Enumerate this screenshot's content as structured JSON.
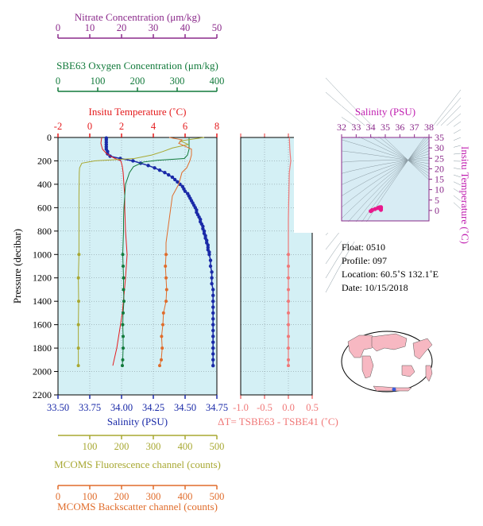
{
  "chart_data": {
    "type": "line",
    "main_panel": {
      "pressure_axis": {
        "label": "Pressure (decibar)",
        "ylim": [
          0,
          2200
        ],
        "reversed": true,
        "ticks": [
          "0",
          "200",
          "400",
          "600",
          "800",
          "1000",
          "1200",
          "1400",
          "1600",
          "1800",
          "2000",
          "2200"
        ]
      },
      "axes": {
        "nitrate": {
          "label": "Nitrate Concentration (μm/kg)",
          "xlim": [
            0,
            50
          ],
          "ticks": [
            "0",
            "10",
            "20",
            "30",
            "40",
            "50"
          ],
          "color": "#8b2a8b"
        },
        "oxygen": {
          "label": "SBE63 Oxygen Concentration (μm/kg)",
          "xlim": [
            0,
            400
          ],
          "ticks": [
            "0",
            "100",
            "200",
            "300",
            "400"
          ],
          "color": "#127a3b"
        },
        "temperature": {
          "label": "Insitu Temperature (˚C)",
          "xlim": [
            -2,
            8
          ],
          "ticks": [
            "-2",
            "0",
            "2",
            "4",
            "6",
            "8"
          ],
          "color": "#e41a1c"
        },
        "salinity": {
          "label": "Salinity (PSU)",
          "xlim": [
            33.5,
            34.75
          ],
          "ticks": [
            "33.50",
            "33.75",
            "34.00",
            "34.25",
            "34.50",
            "34.75"
          ],
          "color": "#1a2aa8"
        },
        "fluorescence": {
          "label": "MCOMS Fluorescence channel (counts)",
          "xlim": [
            0,
            500
          ],
          "ticks": [
            "100",
            "200",
            "300",
            "400",
            "500"
          ],
          "color": "#a8a832"
        },
        "backscatter": {
          "label": "MCOMS Backscatter channel (counts)",
          "xlim": [
            0,
            500
          ],
          "ticks": [
            "0",
            "100",
            "200",
            "300",
            "400",
            "500"
          ],
          "color": "#e06c2b"
        }
      },
      "series": [
        {
          "axis": "salinity",
          "pressure": [
            5,
            20,
            40,
            60,
            80,
            100,
            120,
            140,
            160,
            180,
            200,
            220,
            240,
            260,
            280,
            300,
            320,
            340,
            360,
            380,
            400,
            420,
            440,
            460,
            480,
            500,
            520,
            540,
            560,
            580,
            600,
            620,
            640,
            660,
            680,
            700,
            720,
            740,
            760,
            780,
            800,
            820,
            840,
            860,
            880,
            900,
            920,
            940,
            960,
            980,
            1000,
            1050,
            1100,
            1150,
            1200,
            1250,
            1300,
            1350,
            1400,
            1450,
            1500,
            1550,
            1600,
            1650,
            1700,
            1750,
            1800,
            1850,
            1900,
            1950
          ],
          "values": [
            33.88,
            33.88,
            33.88,
            33.88,
            33.88,
            33.88,
            33.89,
            33.89,
            33.91,
            33.99,
            34.09,
            34.15,
            34.21,
            34.26,
            34.3,
            34.34,
            34.37,
            34.4,
            34.42,
            34.44,
            34.46,
            34.48,
            34.49,
            34.5,
            34.52,
            34.53,
            34.54,
            34.55,
            34.56,
            34.57,
            34.58,
            34.59,
            34.59,
            34.6,
            34.61,
            34.62,
            34.62,
            34.63,
            34.64,
            34.64,
            34.65,
            34.65,
            34.66,
            34.66,
            34.67,
            34.67,
            34.68,
            34.68,
            34.68,
            34.69,
            34.69,
            34.7,
            34.7,
            34.71,
            34.71,
            34.71,
            34.72,
            34.72,
            34.72,
            34.72,
            34.72,
            34.72,
            34.72,
            34.72,
            34.72,
            34.72,
            34.72,
            34.72,
            34.72,
            34.72
          ]
        },
        {
          "axis": "temperature",
          "pressure": [
            0,
            50,
            100,
            130,
            160,
            180,
            200,
            220,
            250,
            300,
            400,
            500,
            600,
            800,
            1000,
            1200,
            1500,
            1800,
            1950
          ],
          "values": [
            0.75,
            0.7,
            0.8,
            1.0,
            1.3,
            1.6,
            1.95,
            2.0,
            2.05,
            2.1,
            2.15,
            2.2,
            2.2,
            2.25,
            2.35,
            2.25,
            2.05,
            1.7,
            1.45
          ]
        },
        {
          "axis": "oxygen",
          "pressure": [
            0,
            100,
            150,
            180,
            195,
            210,
            250,
            300,
            400,
            500,
            600,
            700,
            800,
            900,
            1000,
            1100,
            1200,
            1300,
            1400,
            1500,
            1600,
            1700,
            1800,
            1900,
            1950
          ],
          "values": [
            330,
            330,
            326,
            318,
            250,
            215,
            190,
            180,
            170,
            168,
            166,
            165,
            165,
            164,
            163,
            164,
            165,
            165,
            166,
            164,
            163,
            164,
            164,
            163,
            162
          ]
        },
        {
          "axis": "fluorescence",
          "pressure": [
            0,
            30,
            60,
            90,
            120,
            150,
            180,
            200,
            220,
            260,
            300,
            500,
            800,
            1000,
            1200,
            1400,
            1600,
            1800,
            1950
          ],
          "values": [
            460,
            385,
            410,
            360,
            330,
            295,
            240,
            115,
            75,
            68,
            67,
            66,
            66,
            66,
            64,
            65,
            64,
            64,
            64
          ]
        },
        {
          "axis": "backscatter",
          "pressure": [
            0,
            20,
            50,
            100,
            150,
            200,
            260,
            300,
            400,
            500,
            600,
            700,
            800,
            900,
            1000,
            1100,
            1200,
            1300,
            1400,
            1500,
            1600,
            1700,
            1800,
            1900,
            1950
          ],
          "values": [
            350,
            390,
            380,
            420,
            420,
            415,
            405,
            390,
            380,
            360,
            355,
            350,
            345,
            340,
            340,
            338,
            340,
            342,
            340,
            332,
            330,
            326,
            328,
            325,
            320
          ]
        }
      ]
    },
    "delta_panel": {
      "xlabel": "ΔT= TSBE63 - TSBE41 (˚C)",
      "xlim": [
        -1.0,
        0.5
      ],
      "ticks": [
        "-1.0",
        "-0.5",
        "0.0",
        "0.5"
      ],
      "pressure": [
        0,
        100,
        200,
        300,
        500,
        700,
        1000,
        1100,
        1200,
        1300,
        1400,
        1500,
        1600,
        1700,
        1800,
        1900,
        1950
      ],
      "values": [
        0.02,
        0.03,
        0.05,
        0.02,
        0.01,
        0.0,
        0.0,
        0.0,
        0.0,
        0.0,
        0.0,
        0.0,
        0.0,
        0.0,
        0.0,
        0.0,
        0.0
      ]
    },
    "ts_panel": {
      "xlabel": "Salinity (PSU)",
      "xlim": [
        32,
        38
      ],
      "x_ticks": [
        "32",
        "33",
        "34",
        "35",
        "36",
        "37",
        "38"
      ],
      "ylabel": "Insitu Temperature (˚C)",
      "ylim": [
        -5,
        35
      ],
      "y_ticks": [
        "0",
        "5",
        "10",
        "15",
        "20",
        "25",
        "30",
        "35"
      ],
      "points": [
        [
          34.0,
          -0.3
        ],
        [
          34.1,
          0.2
        ],
        [
          34.3,
          0.7
        ],
        [
          34.5,
          1.2
        ],
        [
          34.6,
          1.5
        ],
        [
          34.7,
          1.6
        ],
        [
          34.7,
          1.2
        ],
        [
          34.7,
          0.7
        ],
        [
          34.7,
          0.3
        ],
        [
          34.6,
          1.4
        ]
      ]
    }
  },
  "info": {
    "float": "Float:  0510",
    "profile": "Profile:  097",
    "location": "Location:  60.5˚S  132.1˚E",
    "date": "Date:  10/15/2018"
  },
  "colors": {
    "plot_bg": "#d4f0f5",
    "grid": "#7a8a8f",
    "ts_bg": "#d8ecf4",
    "ts_point": "#e8188c",
    "delta_series": "#f07878",
    "map_land": "#f7b8c2",
    "map_ocean": "#ffffff",
    "map_marker": "#3a5bd8"
  }
}
